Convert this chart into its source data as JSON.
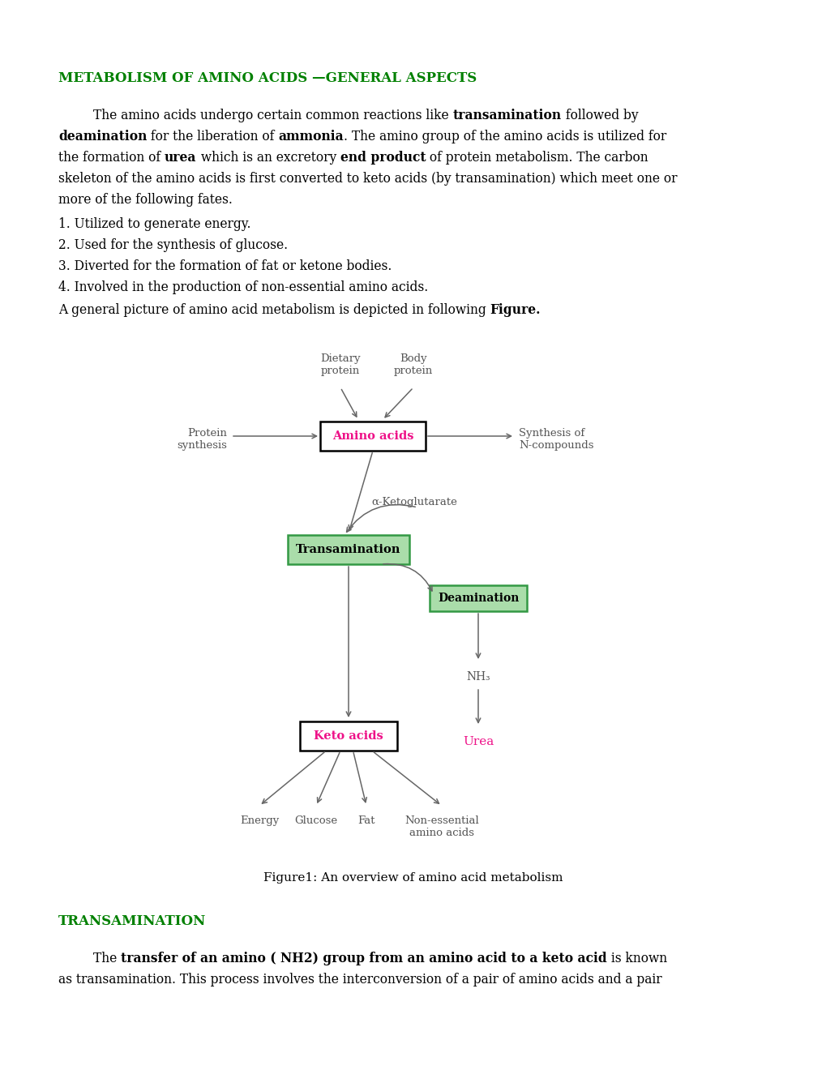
{
  "bg_color": "#ffffff",
  "title": "METABOLISM OF AMINO ACIDS —GENERAL ASPECTS",
  "title_color": "#008000",
  "section2_title": "TRANSAMINATION",
  "section2_color": "#008000",
  "figure_caption": "Figure1: An overview of amino acid metabolism",
  "arrow_color": "#666666",
  "node_color": "#555555",
  "pink": "#ee1188",
  "green_bg": "#aaddaa",
  "green_border": "#339944"
}
